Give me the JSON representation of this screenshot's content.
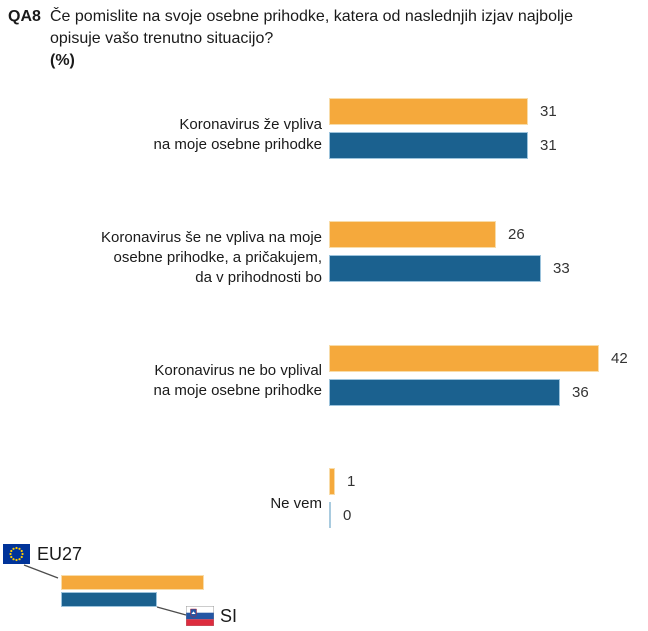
{
  "title": {
    "code": "QA8",
    "lines": [
      "Če pomislite na svoje osebne prihodke, katera od naslednjih izjav najbolje",
      "opisuje vašo trenutno situacijo?"
    ],
    "unit": "(%)"
  },
  "chart_data": {
    "type": "bar",
    "orientation": "horizontal",
    "unit": "%",
    "title": "QA8 Če pomislite na svoje osebne prihodke, katera od naslednjih izjav najbolje opisuje vašo trenutno situacijo? (%)",
    "categories": [
      {
        "lines": [
          "Koronavirus že vpliva",
          "na moje osebne prihodke"
        ]
      },
      {
        "lines": [
          "Koronavirus še ne vpliva na moje",
          "osebne prihodke, a pričakujem,",
          "da v prihodnosti bo"
        ]
      },
      {
        "lines": [
          "Koronavirus ne bo vplival",
          "na moje osebne prihodke"
        ]
      },
      {
        "lines": [
          "Ne vem"
        ]
      }
    ],
    "series": [
      {
        "name": "EU27",
        "color": "#F5A93C",
        "border_color": "#F8DCA9",
        "values": [
          31,
          26,
          42,
          1
        ]
      },
      {
        "name": "SI",
        "color": "#1B618F",
        "border_color": "#9CC3DC",
        "values": [
          31,
          33,
          36,
          0
        ]
      }
    ],
    "zero_bar_color": "#A9CBDF",
    "value_labels": true,
    "axis": {
      "x_min": 0,
      "x_max": 45,
      "gridlines": false
    },
    "legend_position": "bottom-left"
  },
  "legend": {
    "eu_label": "EU27",
    "si_label": "SI"
  },
  "colors": {
    "eu_flag_blue": "#003399",
    "eu_flag_star": "#FFCC00",
    "si_flag_blue": "#2456A4",
    "si_flag_red": "#DD2C3E",
    "connector_line": "#4d4d4d"
  }
}
